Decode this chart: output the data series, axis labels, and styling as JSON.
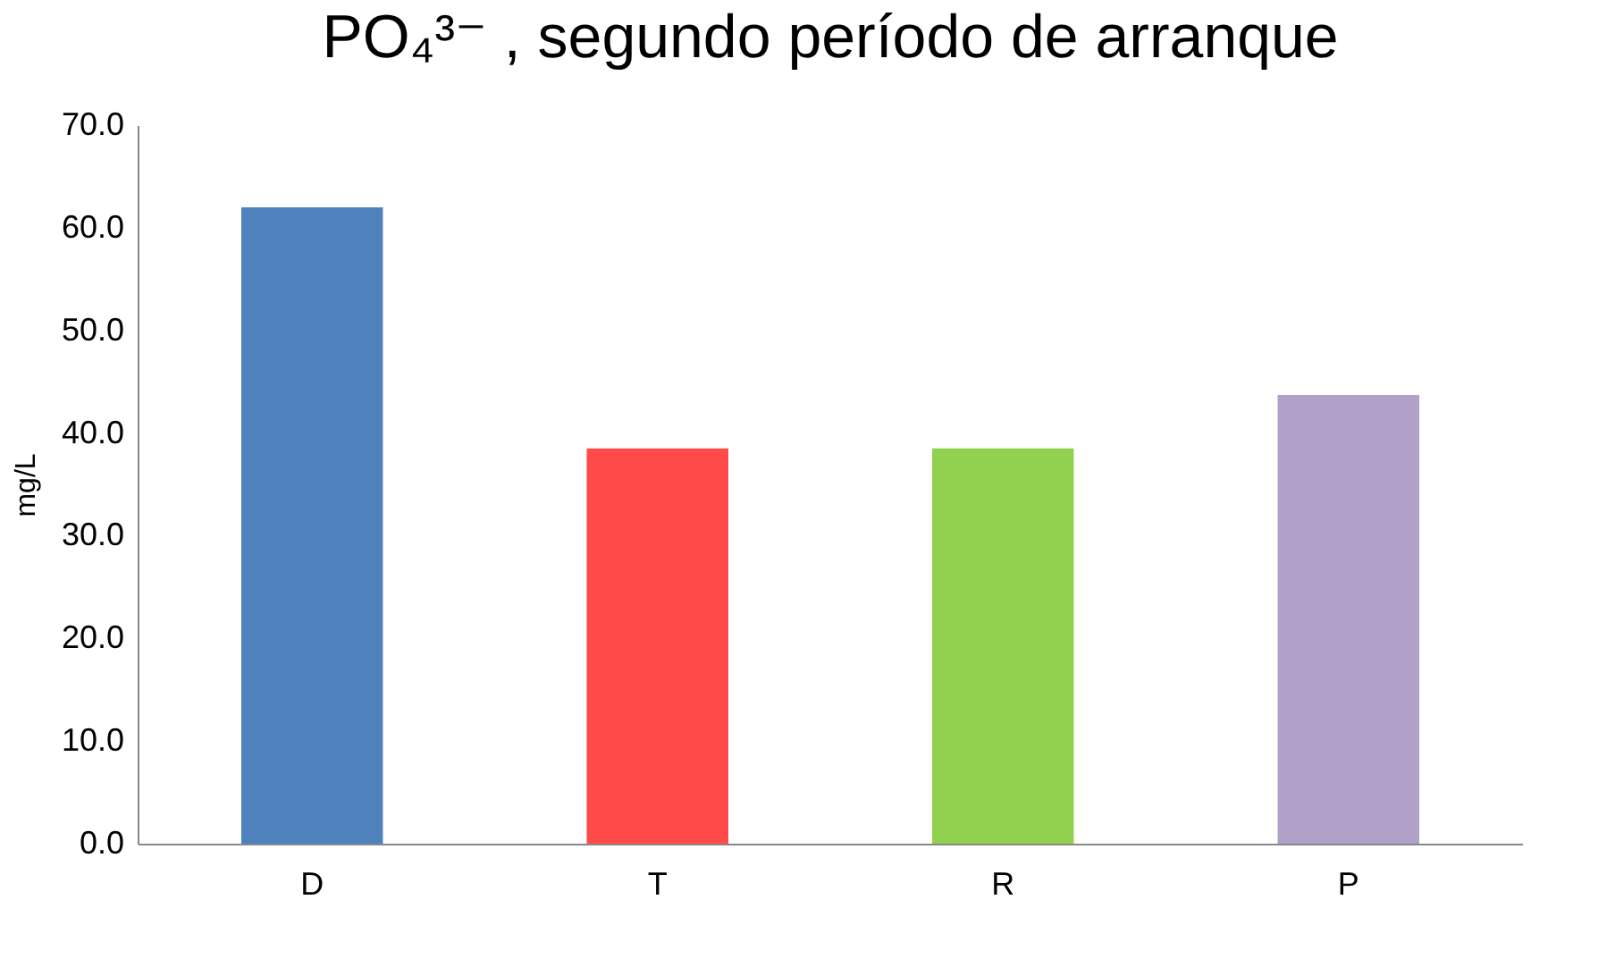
{
  "chart_data": {
    "type": "bar",
    "title": "PO₄³⁻ , segundo período de arranque",
    "ylabel": "mg/L",
    "categories": [
      "D",
      "T",
      "R",
      "P"
    ],
    "values": [
      62.0,
      38.5,
      38.5,
      43.7
    ],
    "colors": [
      "#4f81bd",
      "#ff4a4a",
      "#92d050",
      "#b1a0c7"
    ],
    "ylim": [
      0,
      70
    ],
    "yticks": [
      {
        "value": 0,
        "label": "0.0"
      },
      {
        "value": 10,
        "label": "10.0"
      },
      {
        "value": 20,
        "label": "20.0"
      },
      {
        "value": 30,
        "label": "30.0"
      },
      {
        "value": 40,
        "label": "40.0"
      },
      {
        "value": 50,
        "label": "50.0"
      },
      {
        "value": 60,
        "label": "60.0"
      },
      {
        "value": 70,
        "label": "70.0"
      }
    ],
    "grid": false,
    "legend": false
  }
}
